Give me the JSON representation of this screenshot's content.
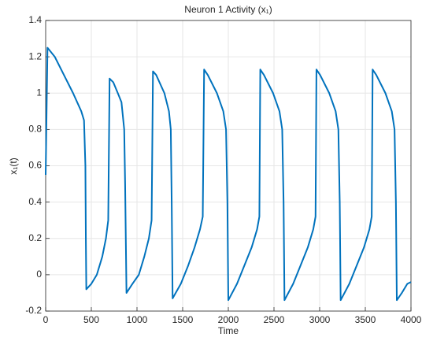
{
  "chart_data": {
    "type": "line",
    "title": "Neuron 1 Activity (x₁)",
    "xlabel": "Time",
    "ylabel": "x₁(t)",
    "x": [
      0,
      20,
      100,
      200,
      300,
      390,
      420,
      435,
      440,
      445,
      500,
      560,
      620,
      660,
      685,
      700,
      740,
      790,
      830,
      860,
      870,
      885,
      950,
      1020,
      1080,
      1130,
      1160,
      1175,
      1210,
      1300,
      1350,
      1370,
      1380,
      1390,
      1480,
      1560,
      1630,
      1690,
      1720,
      1735,
      1775,
      1875,
      1945,
      1975,
      1990,
      2000,
      2095,
      2175,
      2255,
      2315,
      2340,
      2350,
      2390,
      2490,
      2560,
      2590,
      2605,
      2615,
      2710,
      2790,
      2870,
      2930,
      2955,
      2965,
      3005,
      3105,
      3175,
      3205,
      3220,
      3230,
      3325,
      3405,
      3485,
      3545,
      3570,
      3580,
      3620,
      3720,
      3790,
      3820,
      3835,
      3845,
      3900,
      3960,
      4000
    ],
    "series": [
      {
        "name": "x1",
        "color": "#0072bd",
        "values": [
          0.55,
          1.25,
          1.2,
          1.1,
          1.0,
          0.9,
          0.85,
          0.6,
          0.2,
          -0.08,
          -0.05,
          0,
          0.1,
          0.2,
          0.3,
          1.08,
          1.06,
          1.0,
          0.95,
          0.8,
          0.5,
          -0.1,
          -0.05,
          0,
          0.1,
          0.2,
          0.3,
          1.12,
          1.1,
          1.0,
          0.9,
          0.8,
          0.4,
          -0.13,
          -0.05,
          0.05,
          0.15,
          0.25,
          0.32,
          1.13,
          1.1,
          1.0,
          0.9,
          0.8,
          0.4,
          -0.14,
          -0.05,
          0.05,
          0.15,
          0.25,
          0.32,
          1.13,
          1.1,
          1.0,
          0.9,
          0.8,
          0.4,
          -0.14,
          -0.05,
          0.05,
          0.15,
          0.25,
          0.32,
          1.13,
          1.1,
          1.0,
          0.9,
          0.8,
          0.4,
          -0.14,
          -0.05,
          0.05,
          0.15,
          0.25,
          0.32,
          1.13,
          1.1,
          1.0,
          0.9,
          0.8,
          0.4,
          -0.14,
          -0.1,
          -0.05,
          -0.04
        ]
      }
    ],
    "xlim": [
      0,
      4000
    ],
    "xticks": [
      0,
      500,
      1000,
      1500,
      2000,
      2500,
      3000,
      3500,
      4000
    ],
    "ylim": [
      -0.2,
      1.4
    ],
    "yticks": [
      -0.2,
      0,
      0.2,
      0.4,
      0.6,
      0.8,
      1,
      1.2,
      1.4
    ],
    "grid": true
  }
}
